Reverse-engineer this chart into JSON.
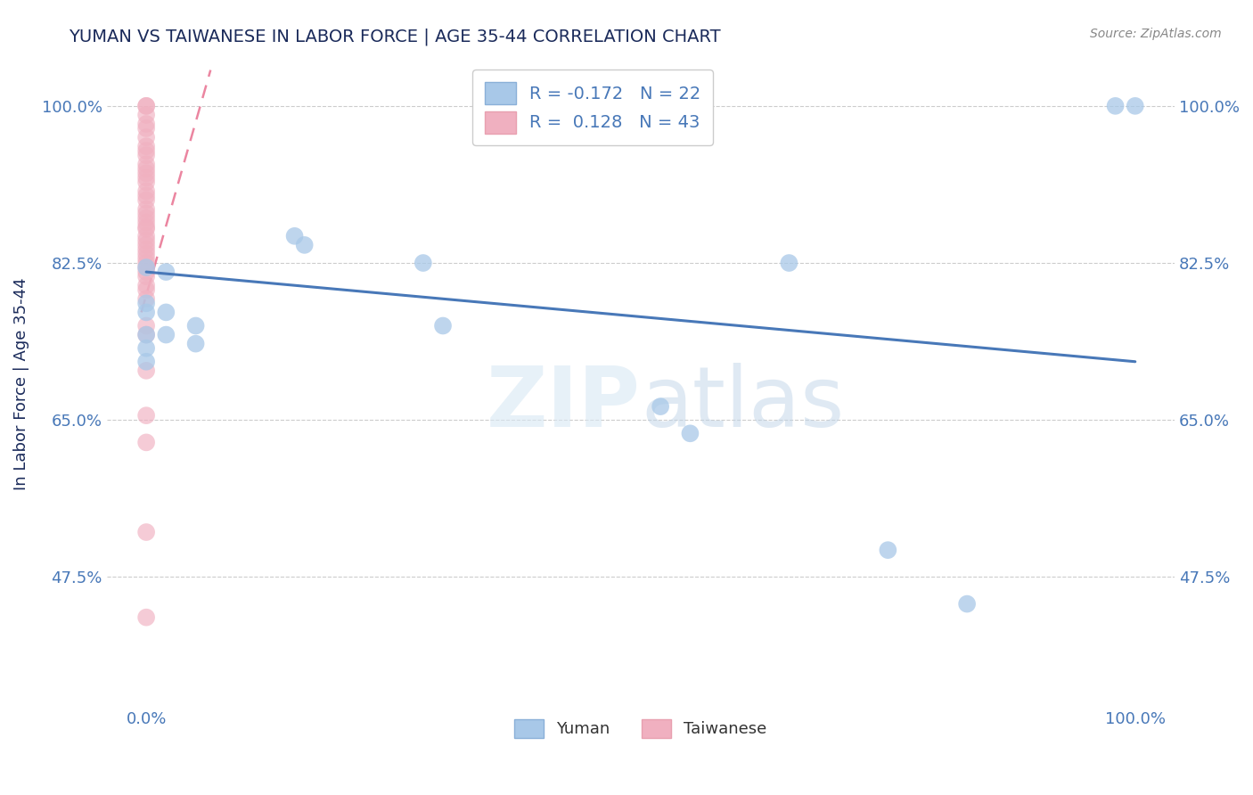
{
  "title": "YUMAN VS TAIWANESE IN LABOR FORCE | AGE 35-44 CORRELATION CHART",
  "source": "Source: ZipAtlas.com",
  "ylabel": "In Labor Force | Age 35-44",
  "xlim": [
    -0.04,
    1.04
  ],
  "ylim": [
    0.33,
    1.05
  ],
  "yticks": [
    0.475,
    0.65,
    0.825,
    1.0
  ],
  "ytick_labels": [
    "47.5%",
    "65.0%",
    "82.5%",
    "100.0%"
  ],
  "xtick_labels": [
    "0.0%",
    "100.0%"
  ],
  "xticks": [
    0.0,
    1.0
  ],
  "legend_R_blue": "-0.172",
  "legend_N_blue": "22",
  "legend_R_pink": "0.128",
  "legend_N_pink": "43",
  "blue_color": "#a8c8e8",
  "pink_color": "#f0b0c0",
  "line_blue_color": "#4878b8",
  "line_pink_color": "#e87090",
  "title_color": "#1a2a5a",
  "axis_label_color": "#1a2a5a",
  "tick_color": "#4878b8",
  "grid_color": "#cccccc",
  "yuman_x": [
    0.0,
    0.0,
    0.0,
    0.0,
    0.0,
    0.0,
    0.02,
    0.02,
    0.02,
    0.05,
    0.05,
    0.15,
    0.16,
    0.28,
    0.3,
    0.52,
    0.55,
    0.65,
    0.75,
    0.83,
    0.98,
    1.0
  ],
  "yuman_y": [
    0.82,
    0.78,
    0.77,
    0.745,
    0.73,
    0.715,
    0.815,
    0.77,
    0.745,
    0.755,
    0.735,
    0.855,
    0.845,
    0.825,
    0.755,
    0.665,
    0.635,
    0.825,
    0.505,
    0.445,
    1.0,
    1.0
  ],
  "taiwanese_x": [
    0.0,
    0.0,
    0.0,
    0.0,
    0.0,
    0.0,
    0.0,
    0.0,
    0.0,
    0.0,
    0.0,
    0.0,
    0.0,
    0.0,
    0.0,
    0.0,
    0.0,
    0.0,
    0.0,
    0.0,
    0.0,
    0.0,
    0.0,
    0.0,
    0.0,
    0.0,
    0.0,
    0.0,
    0.0,
    0.0,
    0.0,
    0.0,
    0.0,
    0.0,
    0.0,
    0.0,
    0.0,
    0.0,
    0.0,
    0.0,
    0.0,
    0.0,
    0.0
  ],
  "taiwanese_y": [
    1.0,
    1.0,
    0.99,
    0.98,
    0.975,
    0.965,
    0.955,
    0.95,
    0.945,
    0.935,
    0.93,
    0.925,
    0.92,
    0.915,
    0.905,
    0.9,
    0.895,
    0.885,
    0.88,
    0.875,
    0.87,
    0.865,
    0.863,
    0.855,
    0.85,
    0.845,
    0.84,
    0.835,
    0.83,
    0.825,
    0.82,
    0.815,
    0.81,
    0.8,
    0.795,
    0.785,
    0.755,
    0.745,
    0.705,
    0.655,
    0.625,
    0.525,
    0.43
  ],
  "blue_trendline_x": [
    0.0,
    1.0
  ],
  "blue_trendline_y": [
    0.815,
    0.715
  ],
  "pink_trendline_x": [
    -0.005,
    0.065
  ],
  "pink_trendline_y": [
    0.77,
    1.04
  ]
}
